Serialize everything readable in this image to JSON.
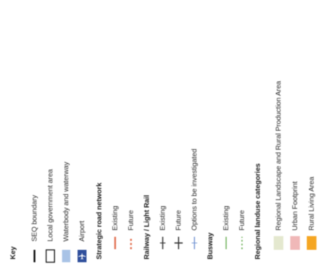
{
  "legend": {
    "title": "Key",
    "colors": {
      "boundary": "#111111",
      "waterbody": "#a9c3e6",
      "airport": "#2f4f9c",
      "road_existing": "#e06a4a",
      "road_future": "#e06a4a",
      "rail": "#333333",
      "rail_options": "#6b8fd0",
      "busway": "#6fb15a",
      "regional_landscape": "#e4e8cf",
      "urban_footprint": "#f0b8b8",
      "rural_living": "#f5a623"
    },
    "items": {
      "seq_boundary": "SEQ boundary",
      "local_government": "Local government area",
      "waterbody": "Waterbody and waterway",
      "airport": "Airport",
      "airport_icon": "airplane-icon",
      "strategic_road": "Strategic road network",
      "road_existing": "Existing",
      "road_future": "Future",
      "rail_heading": "Railway / Light Rail",
      "rail_existing": "Existing",
      "rail_future": "Future",
      "rail_options": "Options to be investigated",
      "busway_heading": "Busway",
      "busway_existing": "Existing",
      "busway_future": "Future",
      "landuse_heading": "Regional landuse categories",
      "regional_landscape": "Regional Landscape and Rural Production Area",
      "urban_footprint": "Urban Footprint",
      "rural_living": "Rural Living Area"
    }
  }
}
